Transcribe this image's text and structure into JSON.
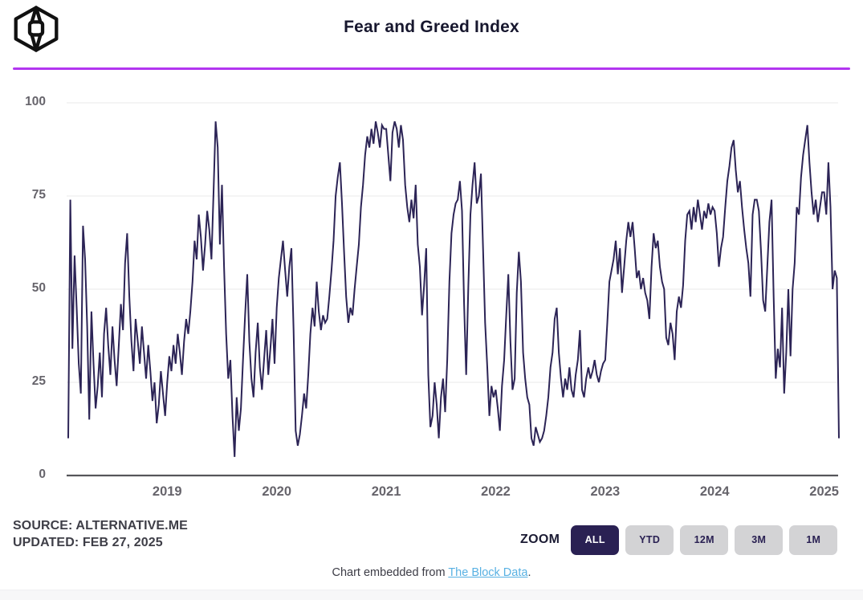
{
  "header": {
    "title": "Fear and Greed Index",
    "logo_name": "the-block-logo",
    "accent_line_color": "#b235f0"
  },
  "chart_data": {
    "type": "line",
    "title": "Fear and Greed Index",
    "series_name": "Fear and Greed Index",
    "x_range_description": "weekly samples, Feb 2018 - Feb 2025",
    "x_tick_labels": [
      "2019",
      "2020",
      "2021",
      "2022",
      "2023",
      "2024",
      "2025"
    ],
    "x_tick_indices": [
      47,
      99,
      151,
      203,
      255,
      307,
      359
    ],
    "y_ticks": [
      0,
      25,
      50,
      75,
      100
    ],
    "ylim": [
      0,
      100
    ],
    "grid": "horizontal",
    "legend": "none",
    "line_color": "#2c2456",
    "gridline_color": "#e8e8e8",
    "axis_color": "#55555a",
    "values": [
      10,
      74,
      34,
      59,
      45,
      30,
      22,
      67,
      58,
      40,
      15,
      44,
      30,
      18,
      24,
      33,
      21,
      38,
      45,
      35,
      27,
      40,
      31,
      24,
      35,
      46,
      39,
      57,
      65,
      48,
      36,
      28,
      42,
      36,
      30,
      40,
      33,
      26,
      35,
      28,
      20,
      25,
      14,
      19,
      28,
      22,
      16,
      25,
      32,
      28,
      35,
      30,
      38,
      33,
      27,
      36,
      42,
      38,
      44,
      52,
      63,
      58,
      70,
      64,
      55,
      62,
      71,
      66,
      58,
      76,
      95,
      88,
      62,
      78,
      56,
      38,
      26,
      31,
      16,
      5,
      21,
      12,
      18,
      31,
      43,
      54,
      36,
      26,
      21,
      33,
      41,
      29,
      23,
      31,
      39,
      27,
      34,
      42,
      30,
      45,
      53,
      58,
      63,
      55,
      48,
      56,
      61,
      39,
      12,
      8,
      11,
      16,
      22,
      18,
      27,
      38,
      45,
      40,
      52,
      44,
      39,
      43,
      41,
      42,
      48,
      55,
      63,
      75,
      80,
      84,
      73,
      60,
      48,
      41,
      45,
      43,
      50,
      56,
      62,
      72,
      78,
      86,
      91,
      88,
      93,
      89,
      95,
      92,
      88,
      94,
      93,
      93,
      86,
      79,
      92,
      95,
      93,
      88,
      94,
      90,
      78,
      72,
      68,
      74,
      69,
      78,
      62,
      56,
      43,
      51,
      61,
      27,
      13,
      16,
      25,
      19,
      10,
      21,
      26,
      17,
      31,
      52,
      65,
      70,
      73,
      74,
      79,
      71,
      46,
      27,
      51,
      70,
      78,
      84,
      73,
      75,
      81,
      61,
      41,
      29,
      16,
      24,
      21,
      23,
      18,
      12,
      24,
      31,
      43,
      54,
      36,
      23,
      26,
      49,
      60,
      52,
      33,
      26,
      21,
      19,
      10,
      8,
      13,
      11,
      9,
      10,
      12,
      16,
      21,
      29,
      33,
      42,
      45,
      33,
      26,
      21,
      26,
      23,
      29,
      23,
      21,
      27,
      31,
      39,
      23,
      21,
      26,
      29,
      26,
      28,
      31,
      27,
      25,
      28,
      30,
      31,
      41,
      52,
      55,
      58,
      63,
      54,
      61,
      49,
      56,
      63,
      68,
      64,
      68,
      61,
      53,
      55,
      50,
      53,
      49,
      47,
      42,
      56,
      65,
      61,
      63,
      56,
      52,
      50,
      37,
      35,
      41,
      38,
      31,
      44,
      48,
      45,
      51,
      63,
      70,
      71,
      66,
      72,
      68,
      74,
      70,
      66,
      71,
      69,
      73,
      70,
      72,
      71,
      65,
      56,
      61,
      64,
      72,
      79,
      83,
      88,
      90,
      82,
      76,
      79,
      72,
      66,
      61,
      57,
      48,
      70,
      74,
      74,
      71,
      60,
      47,
      44,
      56,
      68,
      74,
      48,
      26,
      34,
      29,
      45,
      22,
      33,
      50,
      32,
      50,
      57,
      72,
      70,
      80,
      86,
      90,
      94,
      84,
      76,
      70,
      74,
      68,
      72,
      76,
      76,
      70,
      84,
      72,
      50,
      55,
      53,
      10
    ]
  },
  "footer": {
    "source_line1": "SOURCE: ALTERNATIVE.ME",
    "source_line2": "UPDATED: FEB 27, 2025",
    "zoom_label": "ZOOM",
    "zoom_buttons": [
      {
        "label": "ALL",
        "active": true
      },
      {
        "label": "YTD",
        "active": false
      },
      {
        "label": "12M",
        "active": false
      },
      {
        "label": "3M",
        "active": false
      },
      {
        "label": "1M",
        "active": false
      }
    ],
    "embed_prefix": "Chart embedded from ",
    "embed_link_text": "The Block Data",
    "embed_suffix": "."
  }
}
